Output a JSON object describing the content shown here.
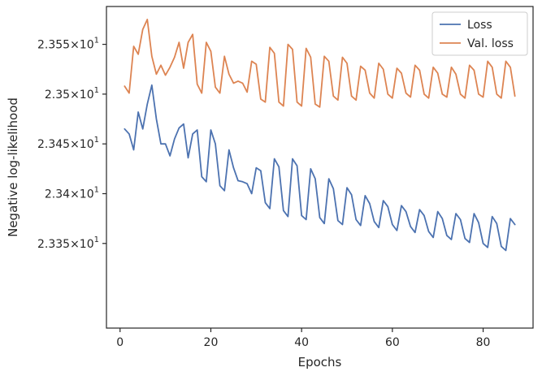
{
  "chart_data": {
    "type": "line",
    "xlabel": "Epochs",
    "ylabel": "Negative log-likelihood",
    "xlim": [
      -3,
      91
    ],
    "ylim": [
      23.3265,
      23.3588
    ],
    "x_ticks": [
      {
        "value": 0,
        "label": "0"
      },
      {
        "value": 20,
        "label": "20"
      },
      {
        "value": 40,
        "label": "40"
      },
      {
        "value": 60,
        "label": "60"
      },
      {
        "value": 80,
        "label": "80"
      }
    ],
    "y_ticks": [
      {
        "value": 23.335,
        "mantissa": "2.335",
        "times": "×",
        "base": "10",
        "exponent": "1"
      },
      {
        "value": 23.34,
        "mantissa": "2.34",
        "times": "×",
        "base": "10",
        "exponent": "1"
      },
      {
        "value": 23.345,
        "mantissa": "2.345",
        "times": "×",
        "base": "10",
        "exponent": "1"
      },
      {
        "value": 23.35,
        "mantissa": "2.35",
        "times": "×",
        "base": "10",
        "exponent": "1"
      },
      {
        "value": 23.355,
        "mantissa": "2.355",
        "times": "×",
        "base": "10",
        "exponent": "1"
      }
    ],
    "grid": false,
    "legend_position": "top-right",
    "series": [
      {
        "name": "Loss",
        "color": "#4c72b0",
        "x": [
          1,
          2,
          3,
          4,
          5,
          6,
          7,
          8,
          9,
          10,
          11,
          12,
          13,
          14,
          15,
          16,
          17,
          18,
          19,
          20,
          21,
          22,
          23,
          24,
          25,
          26,
          27,
          28,
          29,
          30,
          31,
          32,
          33,
          34,
          35,
          36,
          37,
          38,
          39,
          40,
          41,
          42,
          43,
          44,
          45,
          46,
          47,
          48,
          49,
          50,
          51,
          52,
          53,
          54,
          55,
          56,
          57,
          58,
          59,
          60,
          61,
          62,
          63,
          64,
          65,
          66,
          67,
          68,
          69,
          70,
          71,
          72,
          73,
          74,
          75,
          76,
          77,
          78,
          79,
          80,
          81,
          82,
          83,
          84,
          85,
          86,
          87
        ],
        "values": [
          23.3465,
          23.346,
          23.3444,
          23.3482,
          23.3465,
          23.349,
          23.3509,
          23.3475,
          23.345,
          23.345,
          23.3438,
          23.3455,
          23.3466,
          23.347,
          23.3436,
          23.346,
          23.3464,
          23.3417,
          23.3412,
          23.3464,
          23.345,
          23.3408,
          23.3403,
          23.3444,
          23.3426,
          23.3413,
          23.3412,
          23.341,
          23.34,
          23.3426,
          23.3423,
          23.3391,
          23.3385,
          23.3435,
          23.3427,
          23.3383,
          23.3377,
          23.3435,
          23.3428,
          23.3378,
          23.3374,
          23.3425,
          23.3415,
          23.3376,
          23.337,
          23.3415,
          23.3405,
          23.3373,
          23.3369,
          23.3406,
          23.3399,
          23.3374,
          23.3368,
          23.3398,
          23.339,
          23.3372,
          23.3366,
          23.3393,
          23.3387,
          23.3369,
          23.3363,
          23.3388,
          23.3382,
          23.3367,
          23.3361,
          23.3384,
          23.3378,
          23.3362,
          23.3356,
          23.3382,
          23.3375,
          23.3358,
          23.3354,
          23.338,
          23.3374,
          23.3355,
          23.3351,
          23.338,
          23.3371,
          23.335,
          23.3346,
          23.3377,
          23.337,
          23.3347,
          23.3343,
          23.3375,
          23.3369
        ]
      },
      {
        "name": "Val. loss",
        "color": "#dd8452",
        "x": [
          1,
          2,
          3,
          4,
          5,
          6,
          7,
          8,
          9,
          10,
          11,
          12,
          13,
          14,
          15,
          16,
          17,
          18,
          19,
          20,
          21,
          22,
          23,
          24,
          25,
          26,
          27,
          28,
          29,
          30,
          31,
          32,
          33,
          34,
          35,
          36,
          37,
          38,
          39,
          40,
          41,
          42,
          43,
          44,
          45,
          46,
          47,
          48,
          49,
          50,
          51,
          52,
          53,
          54,
          55,
          56,
          57,
          58,
          59,
          60,
          61,
          62,
          63,
          64,
          65,
          66,
          67,
          68,
          69,
          70,
          71,
          72,
          73,
          74,
          75,
          76,
          77,
          78,
          79,
          80,
          81,
          82,
          83,
          84,
          85,
          86,
          87
        ],
        "values": [
          23.3508,
          23.3501,
          23.3548,
          23.354,
          23.3565,
          23.3575,
          23.3538,
          23.352,
          23.3529,
          23.3519,
          23.3527,
          23.3537,
          23.3552,
          23.3526,
          23.3552,
          23.356,
          23.351,
          23.3501,
          23.3552,
          23.3543,
          23.3507,
          23.3501,
          23.3538,
          23.352,
          23.3511,
          23.3513,
          23.3511,
          23.3502,
          23.3533,
          23.353,
          23.3495,
          23.3492,
          23.3547,
          23.3541,
          23.3492,
          23.3488,
          23.355,
          23.3545,
          23.3492,
          23.3488,
          23.3546,
          23.3537,
          23.349,
          23.3487,
          23.3538,
          23.3533,
          23.3498,
          23.3494,
          23.3537,
          23.3531,
          23.3498,
          23.3494,
          23.3528,
          23.3524,
          23.3501,
          23.3496,
          23.3531,
          23.3525,
          23.35,
          23.3496,
          23.3526,
          23.3521,
          23.3501,
          23.3497,
          23.3529,
          23.3524,
          23.35,
          23.3496,
          23.3527,
          23.3521,
          23.35,
          23.3497,
          23.3527,
          23.352,
          23.35,
          23.3496,
          23.3529,
          23.3524,
          23.35,
          23.3497,
          23.3533,
          23.3527,
          23.35,
          23.3496,
          23.3533,
          23.3527,
          23.3498
        ]
      }
    ]
  }
}
